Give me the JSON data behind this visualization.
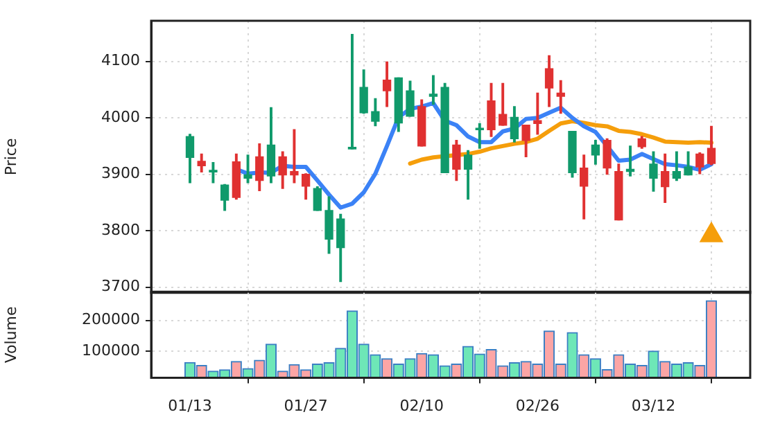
{
  "chart_data": [
    {
      "type": "candlestick",
      "ylabel": "Price",
      "categories": [
        null,
        null,
        null,
        null,
        null,
        null,
        null,
        null,
        null,
        null,
        null,
        null,
        null,
        null,
        null,
        null,
        null,
        null,
        null,
        null,
        null,
        null,
        null,
        null,
        null,
        null,
        null,
        null,
        null,
        null,
        null,
        null,
        null,
        null,
        null,
        null,
        null,
        null,
        null,
        null,
        null,
        null,
        null,
        null,
        null,
        null
      ],
      "ohlc": [
        [
          3930,
          3971,
          3885,
          3967
        ],
        [
          3923,
          3936,
          3904,
          3915
        ],
        [
          3904,
          3921,
          3885,
          3907
        ],
        [
          3854,
          3882,
          3836,
          3881
        ],
        [
          3922,
          3936,
          3856,
          3859
        ],
        [
          3893,
          3934,
          3885,
          3899
        ],
        [
          3931,
          3954,
          3871,
          3889
        ],
        [
          3897,
          4018,
          3885,
          3952
        ],
        [
          3931,
          3940,
          3875,
          3899
        ],
        [
          3905,
          3979,
          3885,
          3899
        ],
        [
          3900,
          3901,
          3856,
          3879
        ],
        [
          3836,
          3878,
          3836,
          3875
        ],
        [
          3785,
          3860,
          3760,
          3836
        ],
        [
          3770,
          3829,
          3710,
          3821
        ],
        [
          3945,
          4148,
          3945,
          3948
        ],
        [
          4009,
          4085,
          4008,
          4054
        ],
        [
          3994,
          4034,
          3986,
          4011
        ],
        [
          4067,
          4099,
          4020,
          4048
        ],
        [
          3991,
          4071,
          3976,
          4071
        ],
        [
          4003,
          4065,
          4003,
          4048
        ],
        [
          4020,
          4032,
          3950,
          3950
        ],
        [
          4038,
          4075,
          4024,
          4042
        ],
        [
          3903,
          4061,
          3903,
          4054
        ],
        [
          3952,
          3960,
          3889,
          3909
        ],
        [
          3909,
          3942,
          3856,
          3934
        ],
        [
          3979,
          3990,
          3946,
          3981
        ],
        [
          4030,
          4061,
          3967,
          3979
        ],
        [
          4006,
          4061,
          3987,
          3987
        ],
        [
          3963,
          4020,
          3957,
          4001
        ],
        [
          3987,
          3987,
          3931,
          3960
        ],
        [
          3995,
          4044,
          3971,
          3990
        ],
        [
          4087,
          4110,
          4020,
          4053
        ],
        [
          4044,
          4066,
          4008,
          4038
        ],
        [
          3903,
          3976,
          3895,
          3976
        ],
        [
          3911,
          3934,
          3821,
          3879
        ],
        [
          3934,
          3960,
          3918,
          3952
        ],
        [
          3960,
          3963,
          3900,
          3911
        ],
        [
          3905,
          3918,
          3819,
          3819
        ],
        [
          3905,
          3950,
          3897,
          3909
        ],
        [
          3963,
          3967,
          3946,
          3949
        ],
        [
          3893,
          3940,
          3870,
          3918
        ],
        [
          3905,
          3936,
          3850,
          3878
        ],
        [
          3893,
          3940,
          3889,
          3905
        ],
        [
          3899,
          3940,
          3899,
          3913
        ],
        [
          3936,
          3938,
          3901,
          3913
        ],
        [
          3946,
          3985,
          3917,
          3919
        ]
      ],
      "colors": [
        "#109a6b",
        "#e03131",
        "#109a6b",
        "#109a6b",
        "#e03131",
        "#109a6b",
        "#e03131",
        "#109a6b",
        "#e03131",
        "#e03131",
        "#e03131",
        "#109a6b",
        "#109a6b",
        "#109a6b",
        "#109a6b",
        "#109a6b",
        "#109a6b",
        "#e03131",
        "#109a6b",
        "#109a6b",
        "#e03131",
        "#109a6b",
        "#109a6b",
        "#e03131",
        "#109a6b",
        "#109a6b",
        "#e03131",
        "#e03131",
        "#109a6b",
        "#e03131",
        "#e03131",
        "#e03131",
        "#e03131",
        "#109a6b",
        "#e03131",
        "#109a6b",
        "#e03131",
        "#e03131",
        "#109a6b",
        "#e03131",
        "#109a6b",
        "#e03131",
        "#109a6b",
        "#109a6b",
        "#e03131",
        "#e03131"
      ],
      "series": [
        {
          "type": "line",
          "color": "#3b82f6",
          "values": [
            null,
            null,
            null,
            null,
            3909,
            3901,
            3903,
            3903,
            3915,
            3913,
            3913,
            3889,
            3864,
            3841,
            3848,
            3868,
            3901,
            3950,
            4001,
            4016,
            4020,
            4026,
            3995,
            3987,
            3967,
            3957,
            3957,
            3976,
            3981,
            3998,
            4000,
            4009,
            4018,
            4000,
            3985,
            3975,
            3950,
            3924,
            3926,
            3936,
            3927,
            3918,
            3916,
            3913,
            3908,
            3918
          ]
        },
        {
          "type": "line",
          "color": "#f59e0b",
          "values": [
            null,
            null,
            null,
            null,
            null,
            null,
            null,
            null,
            null,
            null,
            null,
            null,
            null,
            null,
            null,
            null,
            null,
            null,
            null,
            3919,
            3926,
            3930,
            3932,
            3934,
            3936,
            3940,
            3946,
            3950,
            3954,
            3957,
            3963,
            3977,
            3990,
            3994,
            3991,
            3987,
            3985,
            3977,
            3975,
            3971,
            3965,
            3958,
            3957,
            3956,
            3957,
            3956
          ]
        },
        {
          "type": "scatter",
          "marker": "triangle",
          "color": "#f59e0b",
          "values": [
            null,
            null,
            null,
            null,
            null,
            null,
            null,
            null,
            null,
            null,
            null,
            null,
            null,
            null,
            null,
            null,
            null,
            null,
            null,
            null,
            null,
            null,
            null,
            null,
            null,
            null,
            null,
            null,
            null,
            null,
            null,
            null,
            null,
            null,
            null,
            null,
            null,
            null,
            null,
            null,
            null,
            null,
            null,
            null,
            null,
            3792
          ]
        }
      ],
      "ylim": [
        3690,
        4172
      ],
      "yticks": [
        3700,
        3800,
        3900,
        4000,
        4100
      ],
      "grid": true,
      "tick_labels": "y"
    },
    {
      "type": "bar",
      "ylabel": "Volume",
      "categories": [
        "01/13",
        null,
        null,
        null,
        null,
        null,
        null,
        null,
        null,
        null,
        "01/27",
        null,
        null,
        null,
        null,
        null,
        null,
        null,
        null,
        null,
        "02/10",
        null,
        null,
        null,
        null,
        null,
        null,
        null,
        null,
        null,
        "02/26",
        null,
        null,
        null,
        null,
        null,
        null,
        null,
        null,
        null,
        "03/12",
        null,
        null,
        null,
        null,
        null
      ],
      "values": [
        64000,
        54000,
        36000,
        40000,
        67000,
        44000,
        71000,
        123000,
        36000,
        57000,
        40000,
        59000,
        63000,
        110000,
        231000,
        123000,
        89000,
        76000,
        59000,
        76000,
        93000,
        89000,
        53000,
        59000,
        116000,
        91000,
        106000,
        53000,
        63000,
        67000,
        59000,
        166000,
        59000,
        161000,
        89000,
        76000,
        41000,
        89000,
        59000,
        54000,
        101000,
        67000,
        59000,
        63000,
        54000,
        264000
      ],
      "colors": [
        "#6ee7b7",
        "#fca5a5",
        "#6ee7b7",
        "#6ee7b7",
        "#fca5a5",
        "#6ee7b7",
        "#fca5a5",
        "#6ee7b7",
        "#fca5a5",
        "#fca5a5",
        "#fca5a5",
        "#6ee7b7",
        "#6ee7b7",
        "#6ee7b7",
        "#6ee7b7",
        "#6ee7b7",
        "#6ee7b7",
        "#fca5a5",
        "#6ee7b7",
        "#6ee7b7",
        "#fca5a5",
        "#6ee7b7",
        "#6ee7b7",
        "#fca5a5",
        "#6ee7b7",
        "#6ee7b7",
        "#fca5a5",
        "#fca5a5",
        "#6ee7b7",
        "#fca5a5",
        "#fca5a5",
        "#fca5a5",
        "#fca5a5",
        "#6ee7b7",
        "#fca5a5",
        "#6ee7b7",
        "#fca5a5",
        "#fca5a5",
        "#6ee7b7",
        "#fca5a5",
        "#6ee7b7",
        "#fca5a5",
        "#6ee7b7",
        "#6ee7b7",
        "#fca5a5",
        "#fca5a5"
      ],
      "ylim": [
        14000,
        293000
      ],
      "yticks": [
        100000,
        200000
      ],
      "grid": true
    }
  ]
}
